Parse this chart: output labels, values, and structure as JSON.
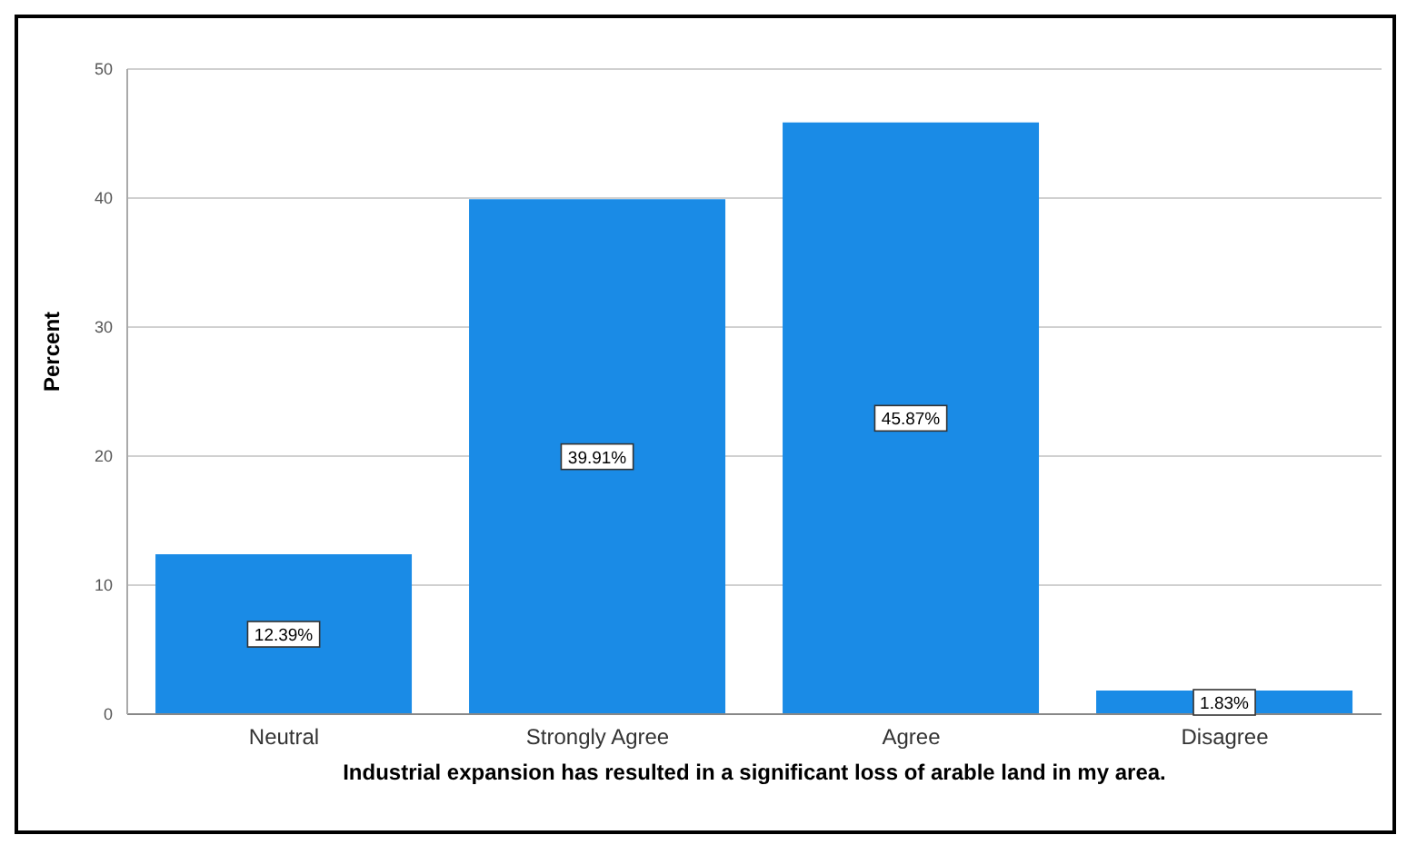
{
  "chart_data": {
    "type": "bar",
    "xlabel": "Industrial expansion has resulted in a significant loss of arable land in my area.",
    "ylabel": "Percent",
    "categories": [
      "Neutral",
      "Strongly Agree",
      "Agree",
      "Disagree"
    ],
    "values": [
      12.39,
      39.91,
      45.87,
      1.83
    ],
    "value_labels": [
      "12.39%",
      "39.91%",
      "45.87%",
      "1.83%"
    ],
    "color": "#1a8be6",
    "ylim": [
      0,
      50
    ],
    "yticks": [
      0,
      10,
      20,
      30,
      40,
      50
    ],
    "grid": "y"
  }
}
